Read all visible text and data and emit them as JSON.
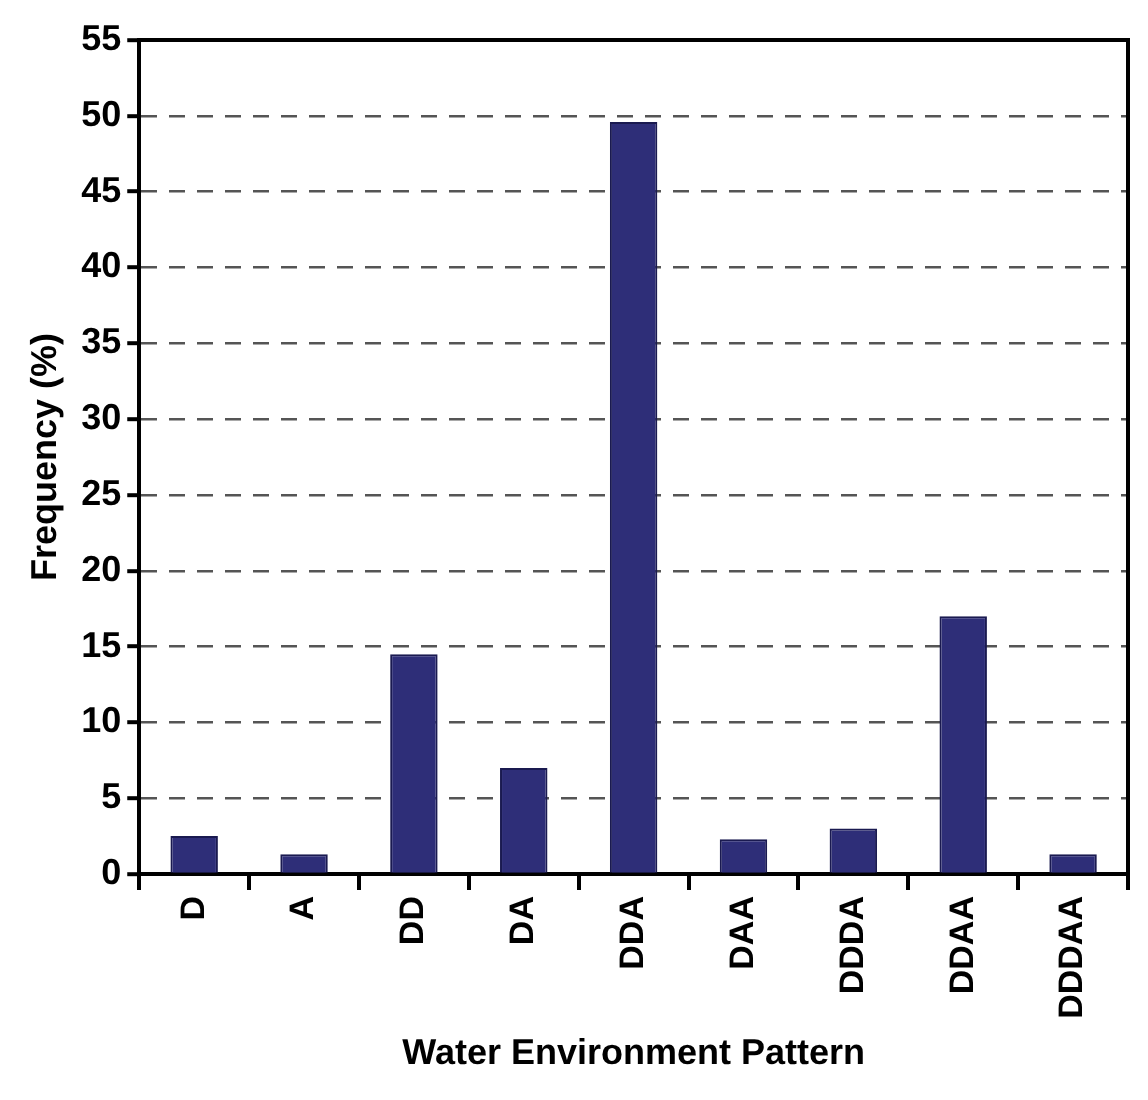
{
  "chart_data": {
    "type": "bar",
    "xlabel": "Water Environment Pattern",
    "ylabel": "Frequency (%)",
    "categories": [
      "D",
      "A",
      "DD",
      "DA",
      "DDA",
      "DAA",
      "DDDA",
      "DDAA",
      "DDDAA"
    ],
    "values": [
      2.5,
      1.3,
      14.5,
      7.0,
      49.6,
      2.3,
      3.0,
      17.0,
      1.3
    ],
    "color": "#2e2e78",
    "ylim": [
      0,
      55
    ],
    "yticks": [
      0,
      5,
      10,
      15,
      20,
      25,
      30,
      35,
      40,
      45,
      50,
      55
    ],
    "grid": "y"
  }
}
